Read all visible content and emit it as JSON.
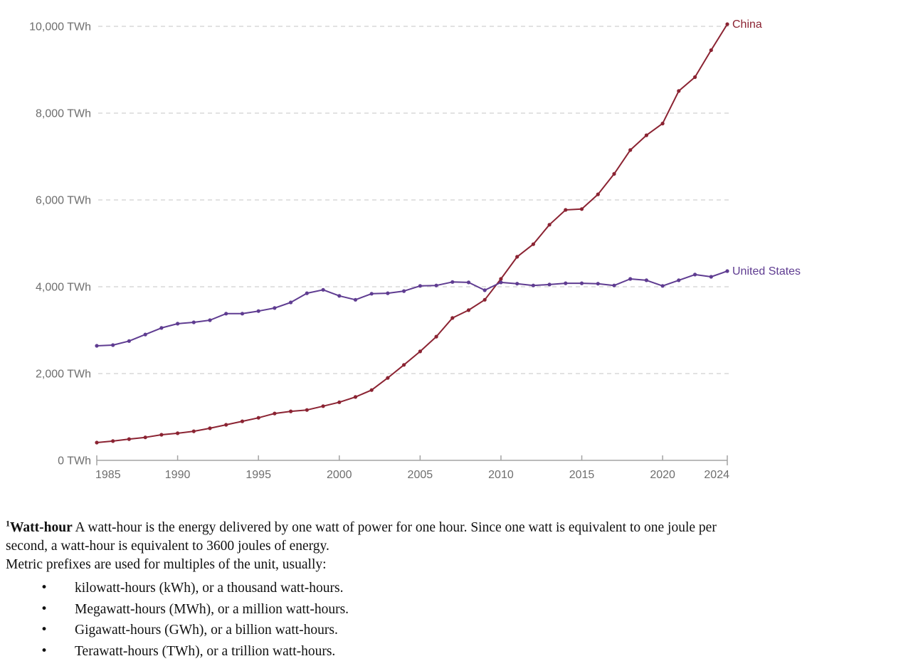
{
  "chart_data": {
    "type": "line",
    "unit": "TWh",
    "x": [
      1985,
      1986,
      1987,
      1988,
      1989,
      1990,
      1991,
      1992,
      1993,
      1994,
      1995,
      1996,
      1997,
      1998,
      1999,
      2000,
      2001,
      2002,
      2003,
      2004,
      2005,
      2006,
      2007,
      2008,
      2009,
      2010,
      2011,
      2012,
      2013,
      2014,
      2015,
      2016,
      2017,
      2018,
      2019,
      2020,
      2021,
      2022,
      2023,
      2024
    ],
    "series": [
      {
        "name": "China",
        "color": "#8B2332",
        "values": [
          410,
          445,
          490,
          530,
          590,
          625,
          670,
          740,
          820,
          900,
          980,
          1080,
          1130,
          1160,
          1250,
          1340,
          1460,
          1620,
          1900,
          2200,
          2510,
          2850,
          3280,
          3460,
          3700,
          4180,
          4690,
          4980,
          5430,
          5770,
          5790,
          6130,
          6600,
          7150,
          7490,
          7760,
          8510,
          8830,
          9450,
          10050
        ]
      },
      {
        "name": "United States",
        "color": "#5F3C91",
        "values": [
          2640,
          2655,
          2750,
          2900,
          3050,
          3150,
          3180,
          3230,
          3380,
          3380,
          3440,
          3510,
          3640,
          3850,
          3930,
          3790,
          3700,
          3840,
          3850,
          3900,
          4020,
          4030,
          4110,
          4100,
          3920,
          4100,
          4070,
          4030,
          4050,
          4080,
          4080,
          4070,
          4030,
          4180,
          4150,
          4020,
          4150,
          4280,
          4230,
          4360
        ]
      }
    ],
    "ylim": [
      0,
      10000
    ],
    "yticks": [
      0,
      2000,
      4000,
      6000,
      8000,
      10000
    ],
    "ytick_labels": [
      "0 TWh",
      "2,000 TWh",
      "4,000 TWh",
      "6,000 TWh",
      "8,000 TWh",
      "10,000 TWh"
    ],
    "xticks": [
      1985,
      1990,
      1995,
      2000,
      2005,
      2010,
      2015,
      2020,
      2024
    ],
    "xtick_labels": [
      "1985",
      "1990",
      "1995",
      "2000",
      "2005",
      "2010",
      "2015",
      "2020",
      "2024"
    ],
    "grid": "horizontal-dashed",
    "legend_position": "line-end-labels"
  },
  "colors": {
    "grid": "#d9d9d9",
    "axis": "#a3a3a3",
    "tick_text": "#6e6e6e",
    "background": "#ffffff"
  },
  "footnote": {
    "sup": "1",
    "term": "Watt-hour",
    "line1_rest": " A watt-hour is the energy delivered by one watt of power for one hour. Since one watt is equivalent to one joule per",
    "line2": "second, a watt-hour is equivalent to 3600 joules of energy.",
    "line3": "Metric prefixes are used for multiples of the unit, usually:",
    "bullet_glyph": "•",
    "bullets": [
      "kilowatt-hours (kWh), or a thousand watt-hours.",
      "Megawatt-hours (MWh), or a million watt-hours.",
      "Gigawatt-hours (GWh), or a billion watt-hours.",
      "Terawatt-hours (TWh), or a trillion watt-hours."
    ]
  }
}
